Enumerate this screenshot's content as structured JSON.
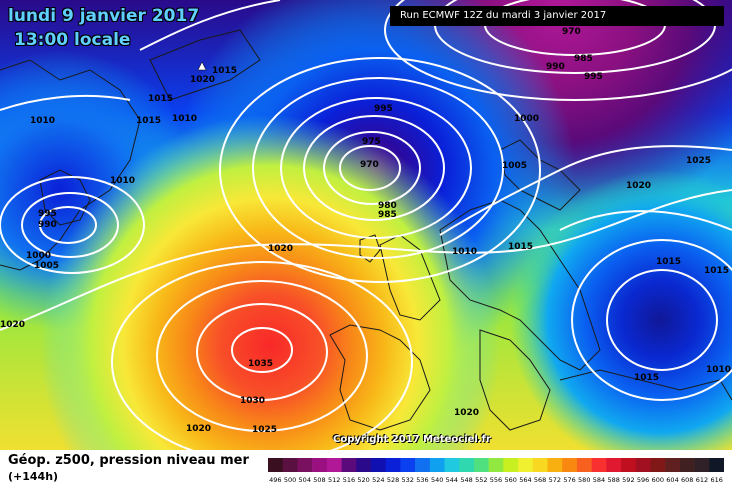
{
  "header": {
    "date": "lundi 9 janvier 2017",
    "time": "13:00 locale",
    "run": "Run ECMWF 12Z du mardi 3 janvier 2017"
  },
  "copyright": "Copyright 2017 Meteociel.fr",
  "legend": {
    "title": "Géop. z500, pression niveau mer",
    "subtitle": "(+144h)",
    "scale": [
      {
        "value": "496",
        "color": "#3a1020"
      },
      {
        "value": "500",
        "color": "#5a1040"
      },
      {
        "value": "504",
        "color": "#7a1060"
      },
      {
        "value": "508",
        "color": "#9a1080"
      },
      {
        "value": "512",
        "color": "#b01898"
      },
      {
        "value": "516",
        "color": "#5a0a7a"
      },
      {
        "value": "520",
        "color": "#2a0a8a"
      },
      {
        "value": "524",
        "color": "#1010b0"
      },
      {
        "value": "528",
        "color": "#0a20d8"
      },
      {
        "value": "532",
        "color": "#0a40f0"
      },
      {
        "value": "536",
        "color": "#1070f0"
      },
      {
        "value": "540",
        "color": "#10a0f0"
      },
      {
        "value": "544",
        "color": "#20c8e0"
      },
      {
        "value": "548",
        "color": "#30d8b0"
      },
      {
        "value": "552",
        "color": "#50e080"
      },
      {
        "value": "556",
        "color": "#90e840"
      },
      {
        "value": "560",
        "color": "#c8f020"
      },
      {
        "value": "564",
        "color": "#f0f030"
      },
      {
        "value": "568",
        "color": "#f8d820"
      },
      {
        "value": "572",
        "color": "#f8b010"
      },
      {
        "value": "576",
        "color": "#f88810"
      },
      {
        "value": "580",
        "color": "#f86020"
      },
      {
        "value": "584",
        "color": "#f83030"
      },
      {
        "value": "588",
        "color": "#e01830"
      },
      {
        "value": "592",
        "color": "#c01020"
      },
      {
        "value": "596",
        "color": "#a01020"
      },
      {
        "value": "600",
        "color": "#801818"
      },
      {
        "value": "604",
        "color": "#602020"
      },
      {
        "value": "608",
        "color": "#402020"
      },
      {
        "value": "612",
        "color": "#302028"
      },
      {
        "value": "616",
        "color": "#101828"
      }
    ]
  },
  "isobar_labels": [
    {
      "text": "1015"
    },
    {
      "text": "1020"
    },
    {
      "text": "1015"
    },
    {
      "text": "1015"
    },
    {
      "text": "1010"
    },
    {
      "text": "1010"
    },
    {
      "text": "1010"
    },
    {
      "text": "995"
    },
    {
      "text": "990"
    },
    {
      "text": "1000"
    },
    {
      "text": "1005"
    },
    {
      "text": "1020"
    },
    {
      "text": "1020"
    },
    {
      "text": "995"
    },
    {
      "text": "975"
    },
    {
      "text": "970"
    },
    {
      "text": "980"
    },
    {
      "text": "985"
    },
    {
      "text": "1010"
    },
    {
      "text": "1015"
    },
    {
      "text": "1005"
    },
    {
      "text": "1000"
    },
    {
      "text": "970"
    },
    {
      "text": "985"
    },
    {
      "text": "990"
    },
    {
      "text": "995"
    },
    {
      "text": "1025"
    },
    {
      "text": "1020"
    },
    {
      "text": "1015"
    },
    {
      "text": "1015"
    },
    {
      "text": "1015"
    },
    {
      "text": "1010"
    },
    {
      "text": "1035"
    },
    {
      "text": "1030"
    },
    {
      "text": "1025"
    },
    {
      "text": "1020"
    },
    {
      "text": "1020"
    }
  ]
}
